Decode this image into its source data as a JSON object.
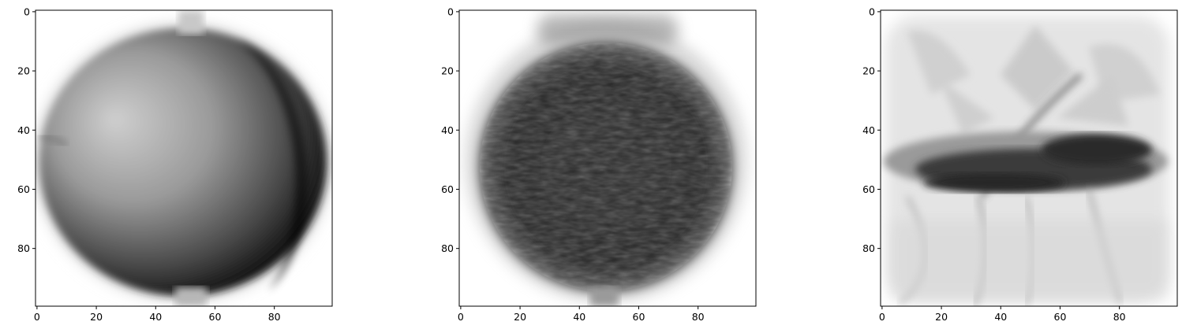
{
  "chart_data": [
    {
      "type": "heatmap",
      "title": "",
      "xlabel": "",
      "ylabel": "",
      "colormap": "gray_r",
      "xlim": [
        -0.5,
        99.5
      ],
      "ylim": [
        99.5,
        -0.5
      ],
      "x_ticks": [
        0,
        20,
        40,
        60,
        80
      ],
      "y_ticks": [
        0,
        20,
        40,
        60,
        80
      ],
      "x_tick_labels": [
        "0",
        "20",
        "40",
        "60",
        "80"
      ],
      "y_tick_labels": [
        "0",
        "20",
        "40",
        "60",
        "80"
      ],
      "grid": false,
      "image_size": [
        100,
        100
      ]
    },
    {
      "type": "heatmap",
      "title": "",
      "xlabel": "",
      "ylabel": "",
      "colormap": "gray_r",
      "xlim": [
        -0.5,
        99.5
      ],
      "ylim": [
        99.5,
        -0.5
      ],
      "x_ticks": [
        0,
        20,
        40,
        60,
        80
      ],
      "y_ticks": [
        0,
        20,
        40,
        60,
        80
      ],
      "x_tick_labels": [
        "0",
        "20",
        "40",
        "60",
        "80"
      ],
      "y_tick_labels": [
        "0",
        "20",
        "40",
        "60",
        "80"
      ],
      "grid": false,
      "image_size": [
        100,
        100
      ]
    },
    {
      "type": "heatmap",
      "title": "",
      "xlabel": "",
      "ylabel": "",
      "colormap": "gray_r",
      "xlim": [
        -0.5,
        99.5
      ],
      "ylim": [
        99.5,
        -0.5
      ],
      "x_ticks": [
        0,
        20,
        40,
        60,
        80
      ],
      "y_ticks": [
        0,
        20,
        40,
        60,
        80
      ],
      "x_tick_labels": [
        "0",
        "20",
        "40",
        "60",
        "80"
      ],
      "y_tick_labels": [
        "0",
        "20",
        "40",
        "60",
        "80"
      ],
      "grid": false,
      "image_size": [
        100,
        100
      ]
    }
  ]
}
